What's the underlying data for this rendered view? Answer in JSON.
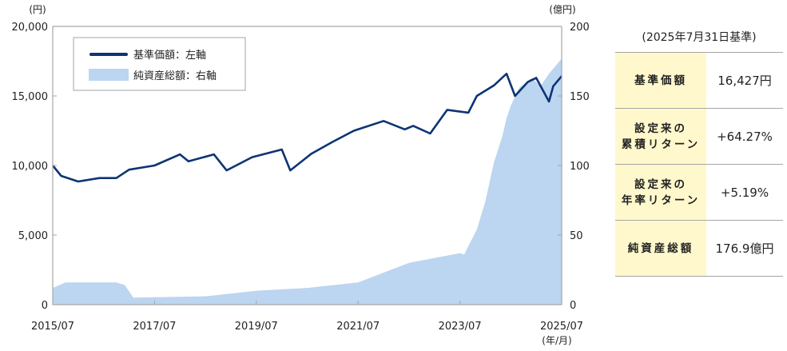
{
  "chart_data": {
    "type": "line+area",
    "left_unit": "(円)",
    "right_unit": "(億円)",
    "x_unit": "(年/月)",
    "x_ticks": [
      "2015/07",
      "2017/07",
      "2019/07",
      "2021/07",
      "2023/07",
      "2025/07"
    ],
    "y_left_ticks": [
      "0",
      "5,000",
      "10,000",
      "15,000",
      "20,000"
    ],
    "y_right_ticks": [
      "0",
      "50",
      "100",
      "150",
      "200"
    ],
    "ylim_left": [
      0,
      20000
    ],
    "ylim_right": [
      0,
      200
    ],
    "xlim": [
      "2015/07",
      "2025/07"
    ],
    "grid": false,
    "legend_placement": "top-left",
    "legend": [
      {
        "label": "基準価額：左軸",
        "color": "#0d3474"
      },
      {
        "label": "純資産総額：右軸",
        "color": "#bcd5f0"
      }
    ],
    "series": [
      {
        "name": "基準価額：左軸",
        "axis": "left",
        "type": "line",
        "color": "#0d3474",
        "points": [
          [
            "2015/07",
            10000
          ],
          [
            "2015/09",
            9250
          ],
          [
            "2016/01",
            8850
          ],
          [
            "2016/06",
            9100
          ],
          [
            "2016/10",
            9100
          ],
          [
            "2017/01",
            9700
          ],
          [
            "2017/07",
            10000
          ],
          [
            "2018/01",
            10800
          ],
          [
            "2018/03",
            10300
          ],
          [
            "2018/09",
            10800
          ],
          [
            "2018/12",
            9650
          ],
          [
            "2019/06",
            10600
          ],
          [
            "2020/01",
            11150
          ],
          [
            "2020/03",
            9650
          ],
          [
            "2020/08",
            10850
          ],
          [
            "2021/01",
            11700
          ],
          [
            "2021/06",
            12500
          ],
          [
            "2022/01",
            13200
          ],
          [
            "2022/06",
            12600
          ],
          [
            "2022/08",
            12850
          ],
          [
            "2022/12",
            12300
          ],
          [
            "2023/04",
            14000
          ],
          [
            "2023/09",
            13800
          ],
          [
            "2023/11",
            15000
          ],
          [
            "2024/03",
            15750
          ],
          [
            "2024/06",
            16600
          ],
          [
            "2024/08",
            15000
          ],
          [
            "2024/11",
            16000
          ],
          [
            "2025/01",
            16300
          ],
          [
            "2025/04",
            14600
          ],
          [
            "2025/05",
            15700
          ],
          [
            "2025/07",
            16427
          ]
        ]
      },
      {
        "name": "純資産総額：右軸",
        "axis": "right",
        "type": "area",
        "color": "#bcd5f0",
        "points": [
          [
            "2015/07",
            12
          ],
          [
            "2015/10",
            16
          ],
          [
            "2016/10",
            16
          ],
          [
            "2016/12",
            14
          ],
          [
            "2017/02",
            5
          ],
          [
            "2018/07",
            6
          ],
          [
            "2019/07",
            10
          ],
          [
            "2020/07",
            12
          ],
          [
            "2021/07",
            16
          ],
          [
            "2022/07",
            30
          ],
          [
            "2023/07",
            37
          ],
          [
            "2023/08",
            36
          ],
          [
            "2023/11",
            54
          ],
          [
            "2024/01",
            74
          ],
          [
            "2024/03",
            102
          ],
          [
            "2024/05",
            121
          ],
          [
            "2024/06",
            134
          ],
          [
            "2024/07",
            143
          ],
          [
            "2024/09",
            156
          ],
          [
            "2024/12",
            163
          ],
          [
            "2025/02",
            157
          ],
          [
            "2025/04",
            166
          ],
          [
            "2025/07",
            176.9
          ]
        ]
      }
    ]
  },
  "summary": {
    "title": "(2025年7月31日基準)",
    "rows": [
      {
        "label": "基準価額",
        "value": "16,427円"
      },
      {
        "label": "設定来の\n累積リターン",
        "value": "+64.27%"
      },
      {
        "label": "設定来の\n年率リターン",
        "value": "+5.19%"
      },
      {
        "label": "純資産総額",
        "value": "176.9億円"
      }
    ]
  }
}
